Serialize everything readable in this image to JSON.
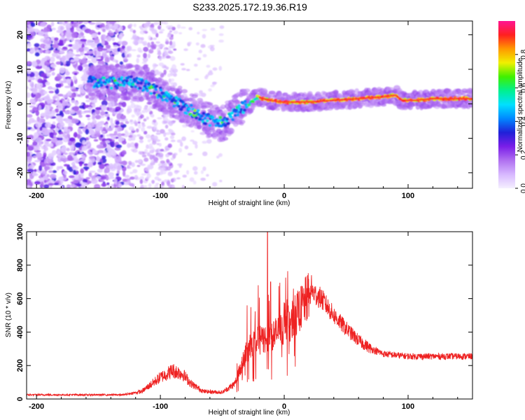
{
  "title": "S233.2025.172.19.36.R19",
  "chart_data": [
    {
      "type": "heatmap",
      "xlabel": "Height of straight line (km)",
      "ylabel": "Frequency (Hz)",
      "xlim": [
        -208,
        152
      ],
      "ylim": [
        -24.5,
        24
      ],
      "xticks": [
        -200,
        -100,
        0,
        100
      ],
      "xtick_labels": [
        "-200",
        "-100",
        "0",
        "100"
      ],
      "yticks": [
        -20,
        -10,
        0,
        10,
        20
      ],
      "ytick_labels": [
        "-20",
        "-10",
        "0",
        "10",
        "20"
      ],
      "colorbar": {
        "label": "Normalized spectral amplitude",
        "range": [
          0,
          1
        ],
        "ticks": [
          0.0,
          0.2,
          0.4,
          0.6,
          0.8
        ],
        "tick_labels": [
          "0.0",
          "0.2",
          "0.4",
          "0.6",
          "0.8"
        ],
        "colors": [
          "#f5f0ff",
          "#d7b8ff",
          "#b070f0",
          "#7a1ee8",
          "#2020d8",
          "#0088ff",
          "#00e0ff",
          "#00f090",
          "#40f000",
          "#f0f000",
          "#ff9900",
          "#ff2020",
          "#ff1493"
        ]
      },
      "ridge": [
        {
          "x": -158,
          "f": 6.5
        },
        {
          "x": -140,
          "f": 6
        },
        {
          "x": -125,
          "f": 6.5
        },
        {
          "x": -110,
          "f": 5
        },
        {
          "x": -95,
          "f": 2
        },
        {
          "x": -80,
          "f": -1
        },
        {
          "x": -68,
          "f": -3.5
        },
        {
          "x": -56,
          "f": -5.5
        },
        {
          "x": -48,
          "f": -5.5
        },
        {
          "x": -38,
          "f": -2
        },
        {
          "x": -28,
          "f": 0
        },
        {
          "x": -22,
          "f": 2
        },
        {
          "x": -12,
          "f": 1
        },
        {
          "x": 0,
          "f": 0.5
        },
        {
          "x": 20,
          "f": 0.5
        },
        {
          "x": 40,
          "f": 1
        },
        {
          "x": 60,
          "f": 1.5
        },
        {
          "x": 80,
          "f": 2
        },
        {
          "x": 90,
          "f": 2.5
        },
        {
          "x": 95,
          "f": 1
        },
        {
          "x": 105,
          "f": 1
        },
        {
          "x": 120,
          "f": 1.5
        },
        {
          "x": 152,
          "f": 1.5
        }
      ]
    },
    {
      "type": "line",
      "xlabel": "Height of straight line (km)",
      "ylabel": "SNR (10 * v/v)",
      "xlim": [
        -208,
        152
      ],
      "ylim": [
        0,
        1000
      ],
      "xticks": [
        -200,
        -100,
        0,
        100
      ],
      "xtick_labels": [
        "-200",
        "-100",
        "0",
        "100"
      ],
      "yticks": [
        0,
        200,
        400,
        600,
        800,
        1000
      ],
      "ytick_labels": [
        "0",
        "200",
        "400",
        "600",
        "800",
        "1000"
      ],
      "series": [
        {
          "color": "#ee2222",
          "envelope": [
            {
              "x": -208,
              "y": 25
            },
            {
              "x": -150,
              "y": 25
            },
            {
              "x": -130,
              "y": 25
            },
            {
              "x": -115,
              "y": 45
            },
            {
              "x": -100,
              "y": 130
            },
            {
              "x": -90,
              "y": 170
            },
            {
              "x": -82,
              "y": 150
            },
            {
              "x": -75,
              "y": 90
            },
            {
              "x": -65,
              "y": 45
            },
            {
              "x": -50,
              "y": 40
            },
            {
              "x": -40,
              "y": 90
            },
            {
              "x": -32,
              "y": 260
            },
            {
              "x": -25,
              "y": 340
            },
            {
              "x": -15,
              "y": 360
            },
            {
              "x": -5,
              "y": 400
            },
            {
              "x": 5,
              "y": 460
            },
            {
              "x": 15,
              "y": 560
            },
            {
              "x": 22,
              "y": 640
            },
            {
              "x": 30,
              "y": 600
            },
            {
              "x": 40,
              "y": 500
            },
            {
              "x": 50,
              "y": 420
            },
            {
              "x": 60,
              "y": 350
            },
            {
              "x": 70,
              "y": 300
            },
            {
              "x": 80,
              "y": 270
            },
            {
              "x": 100,
              "y": 255
            },
            {
              "x": 152,
              "y": 255
            }
          ],
          "peaks": [
            {
              "x": -13.5,
              "y": 1000
            },
            {
              "x": -21,
              "y": 680
            },
            {
              "x": -30,
              "y": 560
            },
            {
              "x": -11,
              "y": 700
            },
            {
              "x": 22,
              "y": 740
            }
          ]
        }
      ]
    }
  ]
}
